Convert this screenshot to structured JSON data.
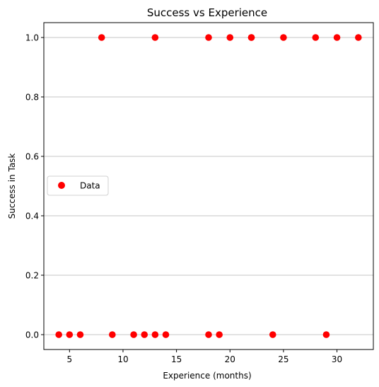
{
  "chart_data": {
    "type": "scatter",
    "title": "Success vs Experience",
    "xlabel": "Experience (months)",
    "ylabel": "Success in Task",
    "xlim": [
      2.6,
      33.4
    ],
    "ylim": [
      -0.05,
      1.05
    ],
    "xticks": [
      5,
      10,
      15,
      20,
      25,
      30
    ],
    "yticks": [
      0.0,
      0.2,
      0.4,
      0.6,
      0.8,
      1.0
    ],
    "ytick_labels": [
      "0.0",
      "0.2",
      "0.4",
      "0.6",
      "0.8",
      "1.0"
    ],
    "grid": "y-major",
    "legend": {
      "position": "center-left",
      "entries": [
        "Data"
      ]
    },
    "series": [
      {
        "name": "Data",
        "color": "#ff0000",
        "marker": "circle",
        "points": [
          [
            4,
            0
          ],
          [
            5,
            0
          ],
          [
            6,
            0
          ],
          [
            8,
            1
          ],
          [
            9,
            0
          ],
          [
            11,
            0
          ],
          [
            12,
            0
          ],
          [
            13,
            0
          ],
          [
            13,
            1
          ],
          [
            14,
            0
          ],
          [
            18,
            0
          ],
          [
            18,
            1
          ],
          [
            19,
            0
          ],
          [
            20,
            1
          ],
          [
            22,
            1
          ],
          [
            22,
            1
          ],
          [
            24,
            0
          ],
          [
            25,
            1
          ],
          [
            28,
            1
          ],
          [
            29,
            0
          ],
          [
            30,
            1
          ],
          [
            32,
            1
          ]
        ]
      }
    ]
  }
}
